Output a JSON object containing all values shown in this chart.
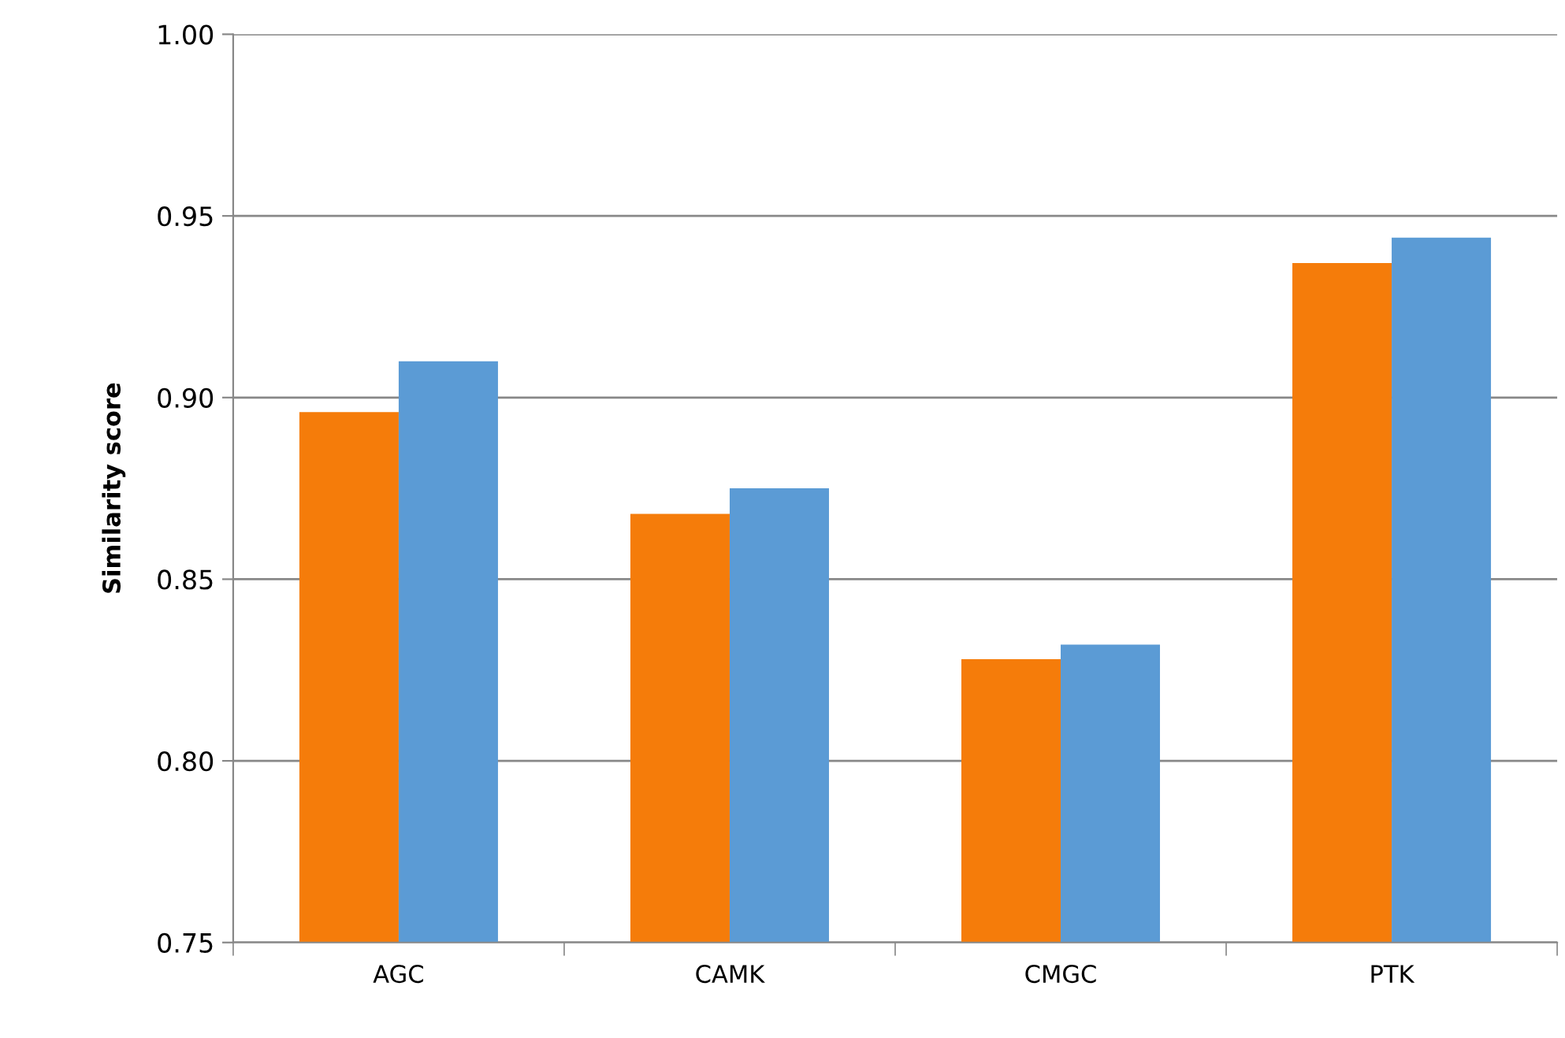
{
  "chart_data": {
    "type": "bar",
    "ylabel": "Similarity score",
    "categories": [
      "AGC",
      "CAMK",
      "CMGC",
      "PTK"
    ],
    "series": [
      {
        "color": "#f57c0a",
        "values": [
          0.896,
          0.868,
          0.828,
          0.937
        ]
      },
      {
        "color": "#5b9bd5",
        "values": [
          0.91,
          0.875,
          0.832,
          0.944
        ]
      }
    ],
    "ylim": [
      0.75,
      1.0
    ],
    "yticks": [
      {
        "value": 0.75,
        "label": "0.75"
      },
      {
        "value": 0.8,
        "label": "0.80"
      },
      {
        "value": 0.85,
        "label": "0.85"
      },
      {
        "value": 0.9,
        "label": "0.90"
      },
      {
        "value": 0.95,
        "label": "0.95"
      },
      {
        "value": 1.0,
        "label": "1.00"
      }
    ],
    "grid": "y"
  }
}
